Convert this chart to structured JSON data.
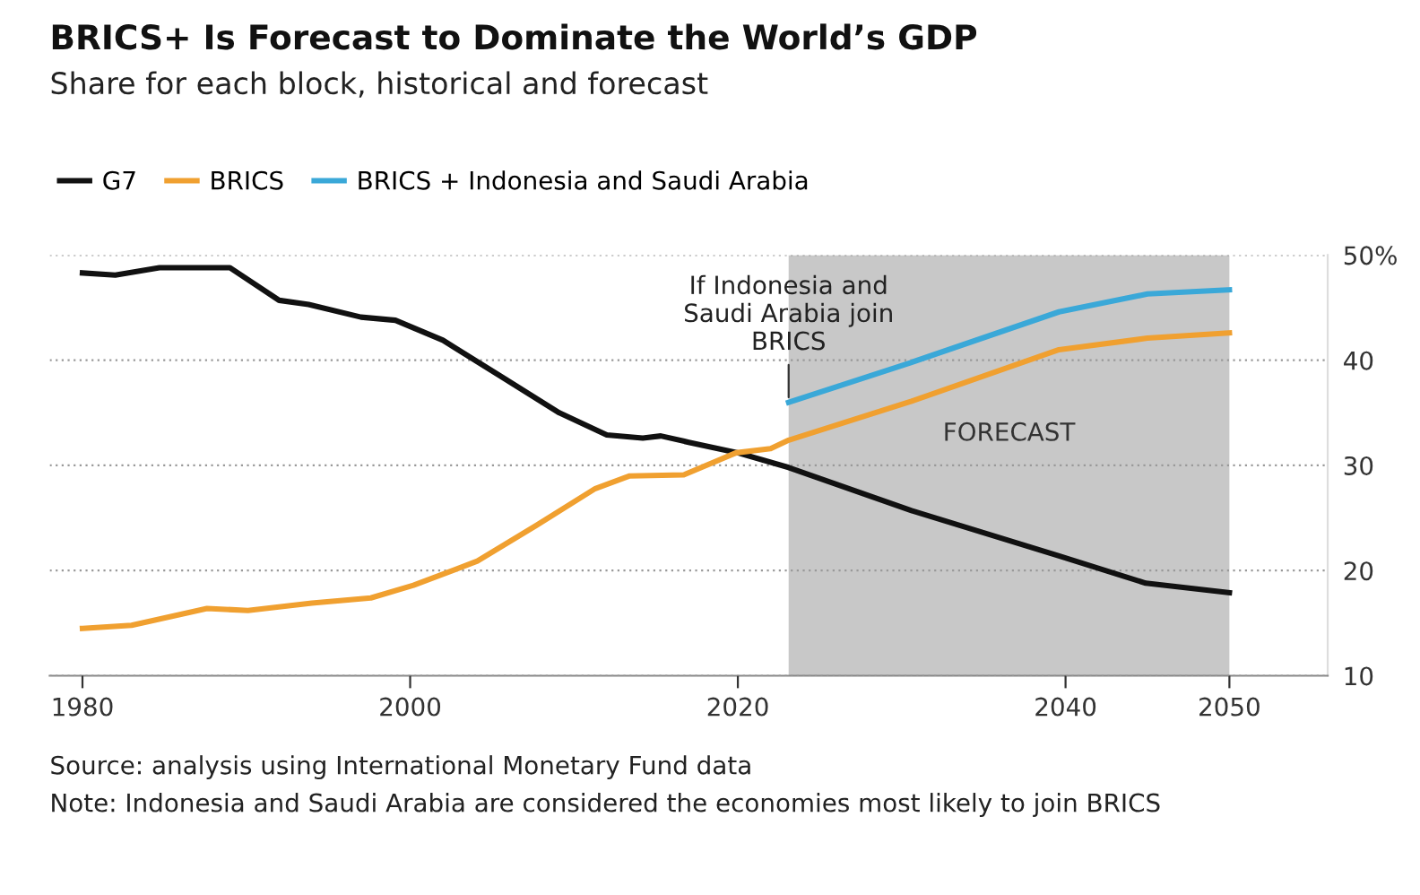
{
  "chart_data": {
    "type": "line",
    "title": "BRICS+ Is Forecast to Dominate the World’s GDP",
    "subtitle": "Share for each block, historical and forecast",
    "series": [
      {
        "name": "G7",
        "color": "#111111",
        "x": [
          1980,
          1982,
          1984.7,
          1989,
          1992,
          1993.8,
          1997,
          1999.1,
          2002,
          2005.6,
          2009.1,
          2012,
          2014.2,
          2015.3,
          2017,
          2020,
          2023.1,
          2030.6,
          2039.6,
          2044.9,
          2050
        ],
        "values": [
          48.3,
          48.1,
          48.8,
          48.8,
          45.7,
          45.3,
          44.1,
          43.8,
          41.9,
          38.4,
          35.0,
          32.9,
          32.6,
          32.8,
          32.2,
          31.2,
          29.8,
          25.7,
          21.4,
          18.8,
          17.9
        ]
      },
      {
        "name": "BRICS",
        "color": "#f0a030",
        "x": [
          1980,
          1983,
          1987.6,
          1990.1,
          1994,
          1997.6,
          2000.2,
          2004.1,
          2007.7,
          2011.3,
          2013.4,
          2016.7,
          2019.9,
          2022,
          2023.1,
          2030.6,
          2039.6,
          2045,
          2050
        ],
        "values": [
          14.5,
          14.8,
          16.4,
          16.2,
          16.9,
          17.4,
          18.6,
          20.9,
          24.3,
          27.8,
          29.0,
          29.1,
          31.2,
          31.6,
          32.4,
          36.1,
          41.0,
          42.1,
          42.6
        ]
      },
      {
        "name": "BRICS + Indonesia and Saudi Arabia",
        "color": "#3aa8d8",
        "x": [
          2023.1,
          2030.6,
          2039.6,
          2045,
          2050
        ],
        "values": [
          36.0,
          39.8,
          44.6,
          46.3,
          46.7
        ]
      }
    ],
    "xlim": [
      1978,
      2056
    ],
    "xticks": [
      1980,
      2000,
      2020,
      2040,
      2050
    ],
    "ylim": [
      10,
      50
    ],
    "yticks": [
      10,
      20,
      30,
      40,
      {
        "value": 50,
        "label": "50%"
      }
    ],
    "grid": "y",
    "legend": "top left",
    "bands": [
      {
        "axis": "x",
        "from": 2023.1,
        "to": 2050,
        "label": "FORECAST",
        "color": "#c8c8c8"
      }
    ],
    "annotations": [
      {
        "text": "If Indonesia and\nSaudi Arabia join\nBRICS",
        "x": 2023.1,
        "y": 36.0
      },
      "Source: analysis using International Monetary Fund data",
      "Note: Indonesia and Saudi Arabia are considered the economies most likely to join BRICS"
    ]
  }
}
